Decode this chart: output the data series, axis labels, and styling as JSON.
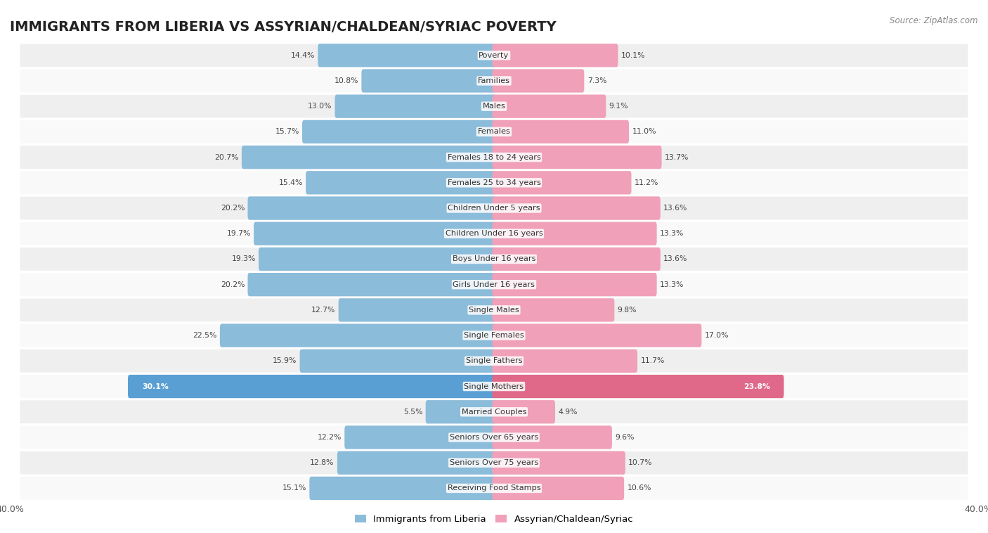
{
  "title": "IMMIGRANTS FROM LIBERIA VS ASSYRIAN/CHALDEAN/SYRIAC POVERTY",
  "source": "Source: ZipAtlas.com",
  "categories": [
    "Poverty",
    "Families",
    "Males",
    "Females",
    "Females 18 to 24 years",
    "Females 25 to 34 years",
    "Children Under 5 years",
    "Children Under 16 years",
    "Boys Under 16 years",
    "Girls Under 16 years",
    "Single Males",
    "Single Females",
    "Single Fathers",
    "Single Mothers",
    "Married Couples",
    "Seniors Over 65 years",
    "Seniors Over 75 years",
    "Receiving Food Stamps"
  ],
  "liberia_values": [
    14.4,
    10.8,
    13.0,
    15.7,
    20.7,
    15.4,
    20.2,
    19.7,
    19.3,
    20.2,
    12.7,
    22.5,
    15.9,
    30.1,
    5.5,
    12.2,
    12.8,
    15.1
  ],
  "assyrian_values": [
    10.1,
    7.3,
    9.1,
    11.0,
    13.7,
    11.2,
    13.6,
    13.3,
    13.6,
    13.3,
    9.8,
    17.0,
    11.7,
    23.8,
    4.9,
    9.6,
    10.7,
    10.6
  ],
  "liberia_color": "#8bbcda",
  "assyrian_color": "#f0a0b8",
  "liberia_highlight_color": "#5a9fd4",
  "assyrian_highlight_color": "#e06888",
  "highlight_rows": [
    13
  ],
  "xlim": 40.0,
  "bar_height": 0.62,
  "row_bg_even": "#efefef",
  "row_bg_odd": "#f9f9f9",
  "legend_liberia": "Immigrants from Liberia",
  "legend_assyrian": "Assyrian/Chaldean/Syriac",
  "title_fontsize": 14,
  "label_fontsize": 8.2,
  "value_fontsize": 7.8,
  "source_fontsize": 8.5
}
